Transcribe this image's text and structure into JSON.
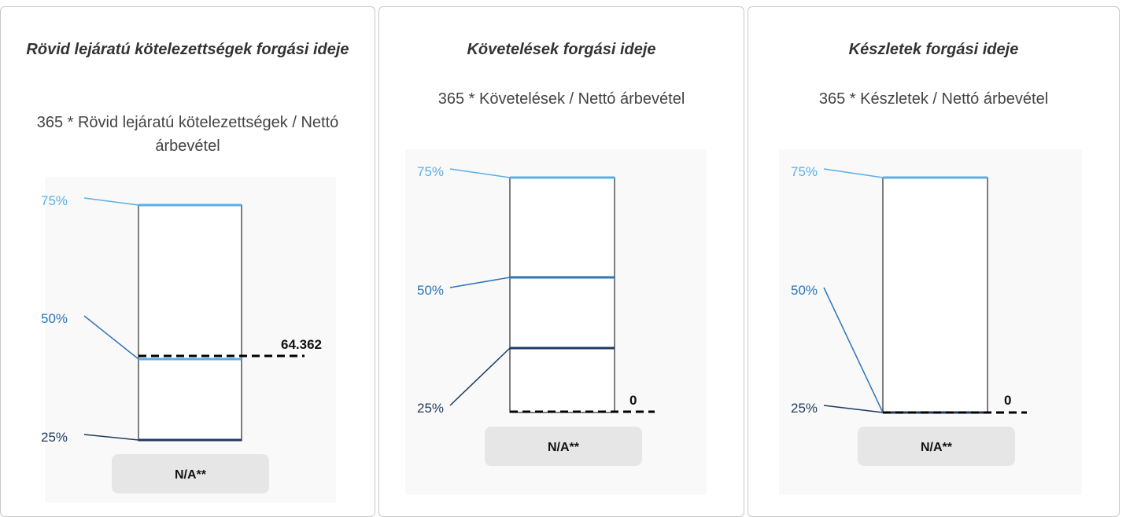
{
  "cards": [
    {
      "title": "Rövid lejáratú kötelezettségek forgási ideje",
      "formula": "365 * Rövid lejáratú kötelezettségek / Nettó árbevétel",
      "labels": [
        "75%",
        "50%",
        "25%"
      ],
      "value": "64.362",
      "button": "N/A**"
    },
    {
      "title": "Követelések forgási ideje",
      "formula": "365 * Követelések / Nettó árbevétel",
      "labels": [
        "75%",
        "50%",
        "25%"
      ],
      "value": "0",
      "button": "N/A**"
    },
    {
      "title": "Készletek forgási ideje",
      "formula": "365 * Készletek / Nettó árbevétel",
      "labels": [
        "75%",
        "50%",
        "25%"
      ],
      "value": "0",
      "button": "N/A**"
    }
  ]
}
